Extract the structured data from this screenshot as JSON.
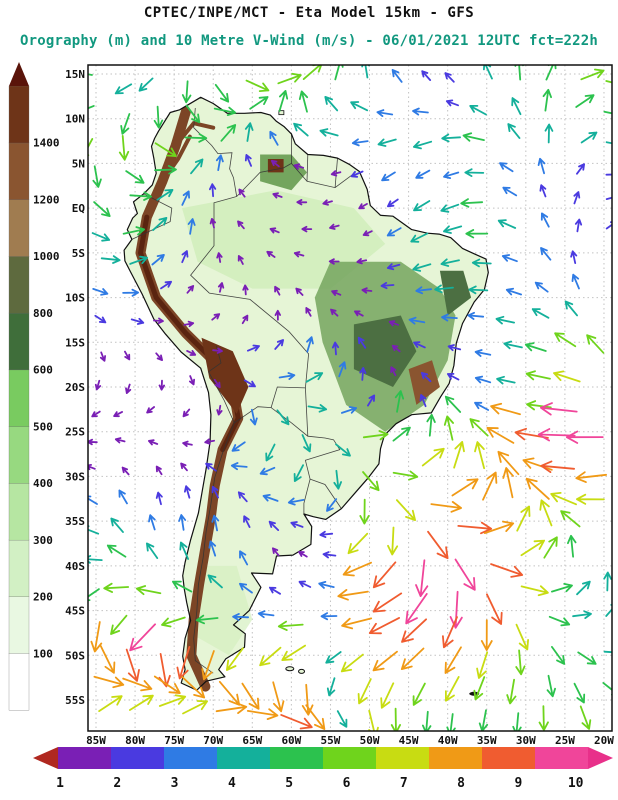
{
  "titles": {
    "line1": "CPTEC/INPE/MCT -  Eta Model 15km - GFS",
    "line2": "Orography (m) and 10 Metre V-Wind (m/s) - 06/01/2021 12UTC fct=222h"
  },
  "colors": {
    "title1": "#111111",
    "title2": "#11987f",
    "ocean": "#ffffff",
    "land_base": "#e6f5d6",
    "amazon_green": "#d4efbf",
    "highland_green": "#74a55e",
    "highland_dark": "#4c6f42",
    "highland_brown": "#8a5530",
    "andes_brown": "#7c4526",
    "andes_core": "#5a2410",
    "altiplano": "#6e3418",
    "coastline": "#111111",
    "border": "#333333",
    "grid": "#c2c2c2",
    "axis_text": "#111111"
  },
  "chart_data": {
    "type": "heatmap",
    "subtype": "orography shading + 10m wind vector field over South America",
    "title": "CPTEC/INPE/MCT -  Eta Model 15km - GFS",
    "subtitle": "Orography (m) and 10 Metre V-Wind (m/s) - 06/01/2021 12UTC fct=222h",
    "shaded_field": "Orography (m)",
    "vector_field_name": "10 Metre V-Wind (m/s)",
    "valid_time": "06/01/2021 12UTC",
    "forecast_hour": "fct=222h",
    "y_ticks": [
      {
        "v": 15,
        "t": "15N"
      },
      {
        "v": 10,
        "t": "10N"
      },
      {
        "v": 5,
        "t": "5N"
      },
      {
        "v": 0,
        "t": "EQ"
      },
      {
        "v": -5,
        "t": "5S"
      },
      {
        "v": -10,
        "t": "10S"
      },
      {
        "v": -15,
        "t": "15S"
      },
      {
        "v": -20,
        "t": "20S"
      },
      {
        "v": -25,
        "t": "25S"
      },
      {
        "v": -30,
        "t": "30S"
      },
      {
        "v": -35,
        "t": "35S"
      },
      {
        "v": -40,
        "t": "40S"
      },
      {
        "v": -45,
        "t": "45S"
      },
      {
        "v": -50,
        "t": "50S"
      },
      {
        "v": -55,
        "t": "55S"
      }
    ],
    "x_ticks": [
      {
        "v": -85,
        "t": "85W"
      },
      {
        "v": -80,
        "t": "80W"
      },
      {
        "v": -75,
        "t": "75W"
      },
      {
        "v": -70,
        "t": "70W"
      },
      {
        "v": -65,
        "t": "65W"
      },
      {
        "v": -60,
        "t": "60W"
      },
      {
        "v": -55,
        "t": "55W"
      },
      {
        "v": -50,
        "t": "50W"
      },
      {
        "v": -45,
        "t": "45W"
      },
      {
        "v": -40,
        "t": "40W"
      },
      {
        "v": -35,
        "t": "35W"
      },
      {
        "v": -30,
        "t": "30W"
      },
      {
        "v": -25,
        "t": "25W"
      },
      {
        "v": -20,
        "t": "20W"
      }
    ],
    "orography_scale": {
      "units": "m",
      "labels": [
        "100",
        "200",
        "300",
        "400",
        "500",
        "600",
        "800",
        "1000",
        "1200",
        "1400"
      ],
      "band_colors_bottom_to_top": [
        "#ffffff",
        "#e9f8e2",
        "#d2f0c4",
        "#b6e6a2",
        "#97d980",
        "#79cb60",
        "#3f6e3a",
        "#5e6a3e",
        "#a07c50",
        "#8a5530",
        "#6e3418"
      ],
      "top_arrow_color": "#5a140a"
    },
    "wind_scale": {
      "units": "m/s",
      "labels": [
        "1",
        "2",
        "3",
        "4",
        "5",
        "6",
        "7",
        "8",
        "9",
        "10"
      ],
      "band_colors": [
        "#7a1fb5",
        "#4a3ae0",
        "#2f7be4",
        "#14b09b",
        "#2cc24e",
        "#6fd41c",
        "#c8dc12",
        "#f09a16",
        "#f05c30",
        "#f0459a"
      ],
      "left_arrow_color": "#b02820",
      "right_arrow_color": "#e8308a"
    },
    "vector_field": {
      "grid_spacing_px": 30,
      "speed_range": [
        1,
        10
      ],
      "note": "arrow color indexes wind speed 1-10 m/s on the bottom scale"
    }
  }
}
